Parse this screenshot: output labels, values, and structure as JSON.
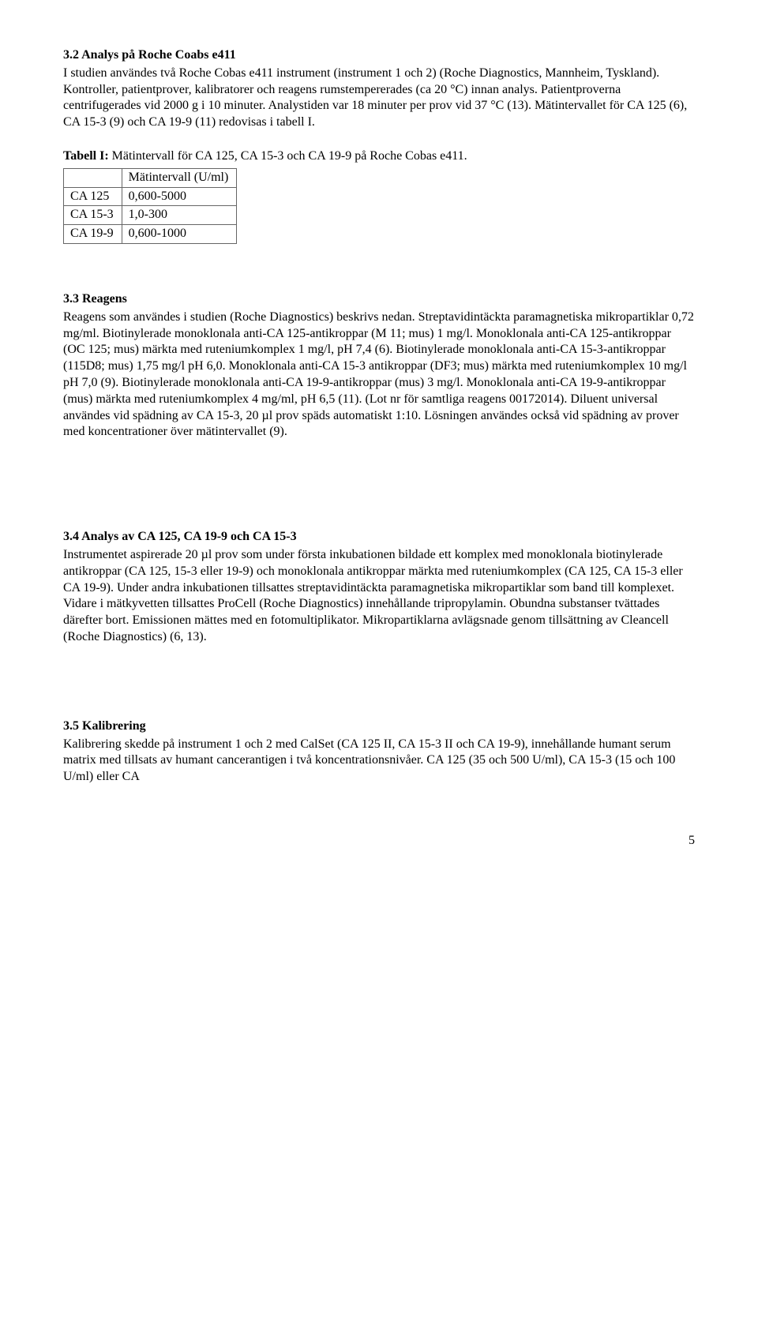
{
  "sec32": {
    "heading": "3.2 Analys på Roche Coabs e411",
    "body": "I studien användes två Roche Cobas e411 instrument (instrument 1 och 2) (Roche Diagnostics, Mannheim, Tyskland). Kontroller, patientprover, kalibratorer och reagens rumstempererades (ca 20 °C) innan analys. Patientproverna centrifugerades vid 2000 g i 10 minuter. Analystiden var 18 minuter per prov vid 37 °C (13). Mätintervallet för CA 125 (6), CA 15-3 (9) och CA 19-9 (11) redovisas i tabell I."
  },
  "table1": {
    "caption_bold": "Tabell I:",
    "caption_rest": " Mätintervall för CA 125, CA 15-3 och CA 19-9 på Roche Cobas e411.",
    "colheader": "Mätintervall (U/ml)",
    "rows": [
      {
        "label": "CA 125",
        "value": "0,600-5000"
      },
      {
        "label": "CA 15-3",
        "value": "1,0-300"
      },
      {
        "label": "CA 19-9",
        "value": "0,600-1000"
      }
    ]
  },
  "sec33": {
    "heading": "3.3 Reagens",
    "body": "Reagens som användes i studien (Roche Diagnostics) beskrivs nedan. Streptavidintäckta paramagnetiska mikropartiklar 0,72 mg/ml. Biotinylerade monoklonala anti-CA 125-antikroppar (M 11; mus) 1 mg/l. Monoklonala anti-CA 125-antikroppar (OC 125; mus) märkta med ruteniumkomplex 1 mg/l, pH 7,4 (6). Biotinylerade monoklonala anti-CA 15-3-antikroppar (115D8; mus) 1,75 mg/l pH 6,0. Monoklonala anti-CA 15-3 antikroppar (DF3; mus) märkta med ruteniumkomplex 10 mg/l pH 7,0 (9). Biotinylerade monoklonala anti-CA 19-9-antikroppar (mus) 3 mg/l. Monoklonala anti-CA 19-9-antikroppar (mus) märkta med ruteniumkomplex 4 mg/ml, pH 6,5 (11). (Lot nr för samtliga reagens 00172014). Diluent universal användes vid spädning av CA 15-3, 20 µl prov späds automatiskt 1:10. Lösningen användes också vid spädning av prover med koncentrationer över mätintervallet (9)."
  },
  "sec34": {
    "heading": "3.4 Analys av CA 125, CA 19-9 och CA 15-3",
    "body": "Instrumentet aspirerade 20 µl prov som under första inkubationen bildade ett komplex med monoklonala biotinylerade antikroppar (CA 125, 15-3 eller 19-9) och monoklonala antikroppar märkta med ruteniumkomplex (CA 125, CA 15-3 eller CA 19-9). Under andra inkubationen tillsattes streptavidintäckta paramagnetiska mikropartiklar som band till komplexet. Vidare i mätkyvetten tillsattes ProCell (Roche Diagnostics) innehållande tripropylamin. Obundna substanser tvättades därefter bort. Emissionen mättes med en fotomultiplikator. Mikropartiklarna avlägsnade genom tillsättning av Cleancell (Roche Diagnostics) (6, 13)."
  },
  "sec35": {
    "heading": "3.5 Kalibrering",
    "body": "Kalibrering skedde på instrument 1 och 2 med CalSet (CA 125 II, CA 15-3 II och CA 19-9), innehållande humant serum matrix med tillsats av humant cancerantigen i två koncentrationsnivåer. CA 125 (35 och 500 U/ml), CA 15-3 (15 och 100 U/ml) eller CA"
  },
  "page_number": "5"
}
